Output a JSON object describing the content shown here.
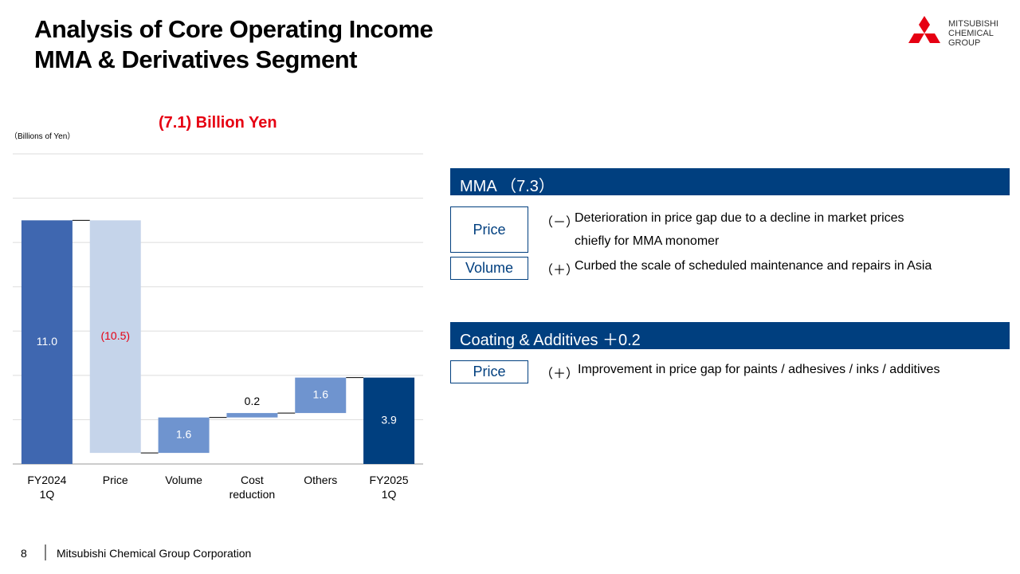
{
  "header": {
    "title_lines": [
      "Analysis of Core Operating Income",
      "MMA & Derivatives Segment"
    ]
  },
  "logo": {
    "lines": [
      "MITSUBISHI",
      "CHEMICAL",
      "GROUP"
    ]
  },
  "chart_data": {
    "type": "waterfall",
    "title": "(7.1) Billion Yen",
    "y_label": "（Billions of Yen）",
    "categories": [
      "FY2024 1Q",
      "Price",
      "Volume",
      "Cost reduction",
      "Others",
      "FY2025 1Q"
    ],
    "values": [
      11.0,
      -10.5,
      1.6,
      0.2,
      1.6,
      3.9
    ],
    "value_labels": [
      "11.0",
      "(10.5)",
      "1.6",
      "0.2",
      "1.6",
      "3.9"
    ],
    "colors": [
      "#3f67b0",
      "#c5d4ea",
      "#6f94cf",
      "#6f94cf",
      "#6f94cf",
      "#003f7f"
    ],
    "ylim": [
      0,
      14
    ],
    "yticks": [
      0,
      2,
      4,
      6,
      8,
      10,
      12,
      14
    ],
    "grid": true
  },
  "sections": [
    {
      "title": "MMA （7.3）",
      "items": [
        {
          "tag": "Price",
          "sign": "（－）",
          "lines": [
            "Deterioration in price gap due to a decline in market prices",
            "chiefly for MMA monomer"
          ]
        },
        {
          "tag": "Volume",
          "sign": "（＋）",
          "lines": [
            "Curbed the scale of scheduled maintenance and repairs in Asia"
          ]
        }
      ]
    },
    {
      "title": "Coating & Additives ＋0.2",
      "items": [
        {
          "tag": "Price",
          "sign": "（＋）",
          "lines": [
            "Improvement in price gap for paints / adhesives / inks / additives"
          ]
        }
      ]
    }
  ],
  "footer": {
    "page": "8",
    "company": "Mitsubishi Chemical Group Corporation"
  }
}
